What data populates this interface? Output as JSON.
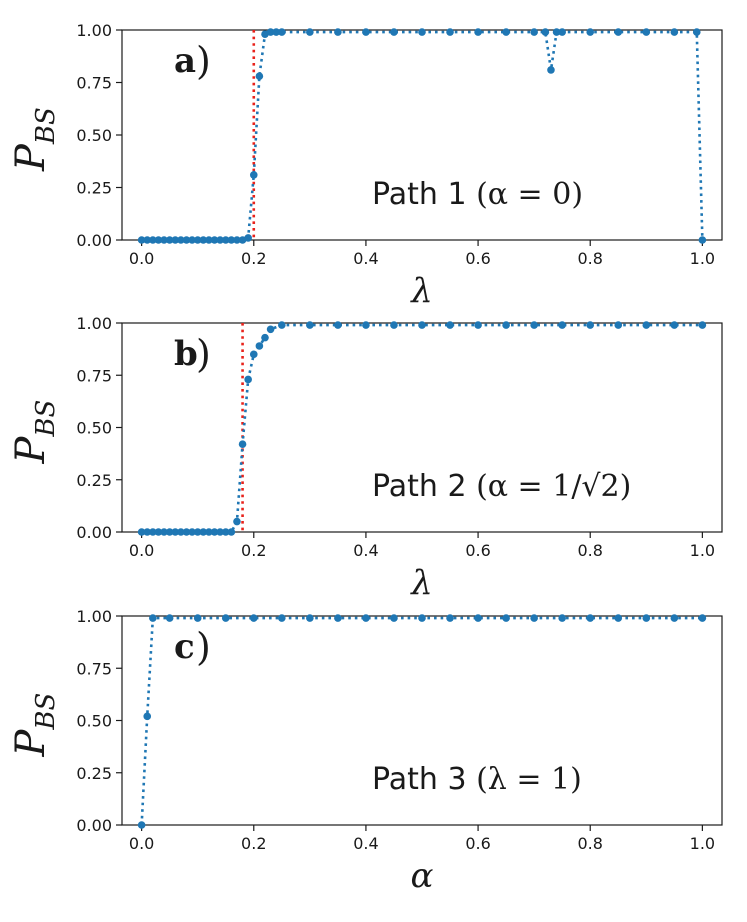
{
  "chart_data": [
    {
      "type": "line",
      "panel_label": "a",
      "annotation": {
        "text": "Path 1",
        "condition": "(α = 0)"
      },
      "xlabel": "λ",
      "ylabel": {
        "main": "P",
        "sub": "BS"
      },
      "xlim": [
        -0.035,
        1.035
      ],
      "ylim": [
        0.0,
        1.0
      ],
      "xticks": [
        0.0,
        0.2,
        0.4,
        0.6,
        0.8,
        1.0
      ],
      "xtick_labels": [
        "0.0",
        "0.2",
        "0.4",
        "0.6",
        "0.8",
        "1.0"
      ],
      "yticks": [
        0.0,
        0.25,
        0.5,
        0.75,
        1.0
      ],
      "ytick_labels": [
        "0.00",
        "0.25",
        "0.50",
        "0.75",
        "1.00"
      ],
      "critical_line": {
        "x": 0.2,
        "color": "#e8221b"
      },
      "series": [
        {
          "color": "#1f77b4",
          "x": [
            0.0,
            0.01,
            0.02,
            0.03,
            0.04,
            0.05,
            0.06,
            0.07,
            0.08,
            0.09,
            0.1,
            0.11,
            0.12,
            0.13,
            0.14,
            0.15,
            0.16,
            0.17,
            0.18,
            0.19,
            0.2,
            0.21,
            0.22,
            0.23,
            0.24,
            0.25,
            0.3,
            0.35,
            0.4,
            0.45,
            0.5,
            0.55,
            0.6,
            0.65,
            0.7,
            0.72,
            0.73,
            0.74,
            0.75,
            0.8,
            0.85,
            0.9,
            0.95,
            0.99,
            1.0
          ],
          "y": [
            0.0,
            0.0,
            0.0,
            0.0,
            0.0,
            0.0,
            0.0,
            0.0,
            0.0,
            0.0,
            0.0,
            0.0,
            0.0,
            0.0,
            0.0,
            0.0,
            0.0,
            0.0,
            0.0,
            0.01,
            0.31,
            0.78,
            0.98,
            0.99,
            0.99,
            0.99,
            0.99,
            0.99,
            0.99,
            0.99,
            0.99,
            0.99,
            0.99,
            0.99,
            0.99,
            0.99,
            0.81,
            0.99,
            0.99,
            0.99,
            0.99,
            0.99,
            0.99,
            0.99,
            0.0
          ]
        }
      ]
    },
    {
      "type": "line",
      "panel_label": "b",
      "annotation": {
        "text": "Path 2",
        "condition": "(α = 1/√2)"
      },
      "xlabel": "λ",
      "ylabel": {
        "main": "P",
        "sub": "BS"
      },
      "xlim": [
        -0.035,
        1.035
      ],
      "ylim": [
        0.0,
        1.0
      ],
      "xticks": [
        0.0,
        0.2,
        0.4,
        0.6,
        0.8,
        1.0
      ],
      "xtick_labels": [
        "0.0",
        "0.2",
        "0.4",
        "0.6",
        "0.8",
        "1.0"
      ],
      "yticks": [
        0.0,
        0.25,
        0.5,
        0.75,
        1.0
      ],
      "ytick_labels": [
        "0.00",
        "0.25",
        "0.50",
        "0.75",
        "1.00"
      ],
      "critical_line": {
        "x": 0.18,
        "color": "#e8221b"
      },
      "series": [
        {
          "color": "#1f77b4",
          "x": [
            0.0,
            0.01,
            0.02,
            0.03,
            0.04,
            0.05,
            0.06,
            0.07,
            0.08,
            0.09,
            0.1,
            0.11,
            0.12,
            0.13,
            0.14,
            0.15,
            0.16,
            0.17,
            0.18,
            0.19,
            0.2,
            0.21,
            0.22,
            0.23,
            0.25,
            0.3,
            0.35,
            0.4,
            0.45,
            0.5,
            0.55,
            0.6,
            0.65,
            0.7,
            0.75,
            0.8,
            0.85,
            0.9,
            0.95,
            1.0
          ],
          "y": [
            0.0,
            0.0,
            0.0,
            0.0,
            0.0,
            0.0,
            0.0,
            0.0,
            0.0,
            0.0,
            0.0,
            0.0,
            0.0,
            0.0,
            0.0,
            0.0,
            0.0,
            0.05,
            0.42,
            0.73,
            0.85,
            0.89,
            0.93,
            0.97,
            0.99,
            0.99,
            0.99,
            0.99,
            0.99,
            0.99,
            0.99,
            0.99,
            0.99,
            0.99,
            0.99,
            0.99,
            0.99,
            0.99,
            0.99,
            0.99
          ]
        }
      ]
    },
    {
      "type": "line",
      "panel_label": "c",
      "annotation": {
        "text": "Path 3",
        "condition": "(λ = 1)"
      },
      "xlabel": "α",
      "ylabel": {
        "main": "P",
        "sub": "BS"
      },
      "xlim": [
        -0.035,
        1.035
      ],
      "ylim": [
        0.0,
        1.0
      ],
      "xticks": [
        0.0,
        0.2,
        0.4,
        0.6,
        0.8,
        1.0
      ],
      "xtick_labels": [
        "0.0",
        "0.2",
        "0.4",
        "0.6",
        "0.8",
        "1.0"
      ],
      "yticks": [
        0.0,
        0.5,
        1.0
      ],
      "ytick_labels": [
        "0.00",
        "0.50",
        "1.00"
      ],
      "yticks_labeled": [
        0.0,
        0.25,
        0.5,
        0.75,
        1.0
      ],
      "ytick_labels_all": [
        "0.00",
        "0.25",
        "0.50",
        "0.75",
        "1.00"
      ],
      "critical_line": null,
      "series": [
        {
          "color": "#1f77b4",
          "x": [
            0.0,
            0.01,
            0.02,
            0.05,
            0.1,
            0.15,
            0.2,
            0.25,
            0.3,
            0.35,
            0.4,
            0.45,
            0.5,
            0.55,
            0.6,
            0.65,
            0.7,
            0.75,
            0.8,
            0.85,
            0.9,
            0.95,
            1.0
          ],
          "y": [
            0.0,
            0.52,
            0.99,
            0.99,
            0.99,
            0.99,
            0.99,
            0.99,
            0.99,
            0.99,
            0.99,
            0.99,
            0.99,
            0.99,
            0.99,
            0.99,
            0.99,
            0.99,
            0.99,
            0.99,
            0.99,
            0.99,
            0.99
          ]
        }
      ]
    }
  ]
}
